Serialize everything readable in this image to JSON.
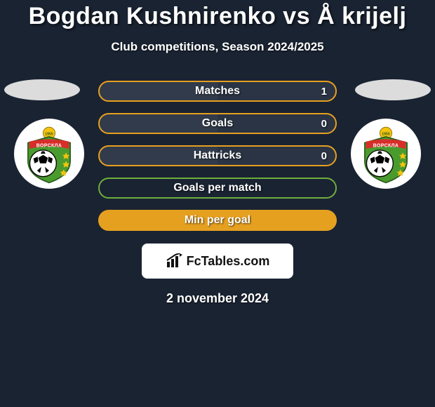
{
  "title": "Bogdan Kushnirenko vs Å krijelj",
  "subtitle": "Club competitions, Season 2024/2025",
  "date": "2 november 2024",
  "brand": "FcTables.com",
  "colors": {
    "background": "#1a2332",
    "row_border_primary": "#e6a020",
    "row_fill_primary": "#2a3444",
    "row_border_alt": "#6fae3c",
    "oval": "#dcdcdc",
    "badge_banner": "#d72e2a",
    "badge_green": "#4a9b2e",
    "badge_yellow": "#f4c40f"
  },
  "rows": [
    {
      "label": "Matches",
      "value_right": "1",
      "border": "#e6a020",
      "fill": "#2a3444",
      "half_fill": true
    },
    {
      "label": "Goals",
      "value_right": "0",
      "border": "#e6a020",
      "fill": "#2a3444",
      "half_fill": true
    },
    {
      "label": "Hattricks",
      "value_right": "0",
      "border": "#e6a020",
      "fill": "#2a3444",
      "half_fill": true
    },
    {
      "label": "Goals per match",
      "value_right": "",
      "border": "#6fae3c",
      "fill": "#1a2332",
      "half_fill": false
    },
    {
      "label": "Min per goal",
      "value_right": "",
      "border": "#e6a020",
      "fill": "#e6a020",
      "half_fill": false
    }
  ],
  "badge": {
    "top_text": "ВОРСКЛА",
    "year": "1955",
    "banner_color": "#d72e2a",
    "shield_green": "#4a9b2e",
    "shield_yellow": "#f4c40f",
    "star_color": "#f4c40f",
    "ball_colors": {
      "white": "#ffffff",
      "black": "#000000"
    }
  }
}
